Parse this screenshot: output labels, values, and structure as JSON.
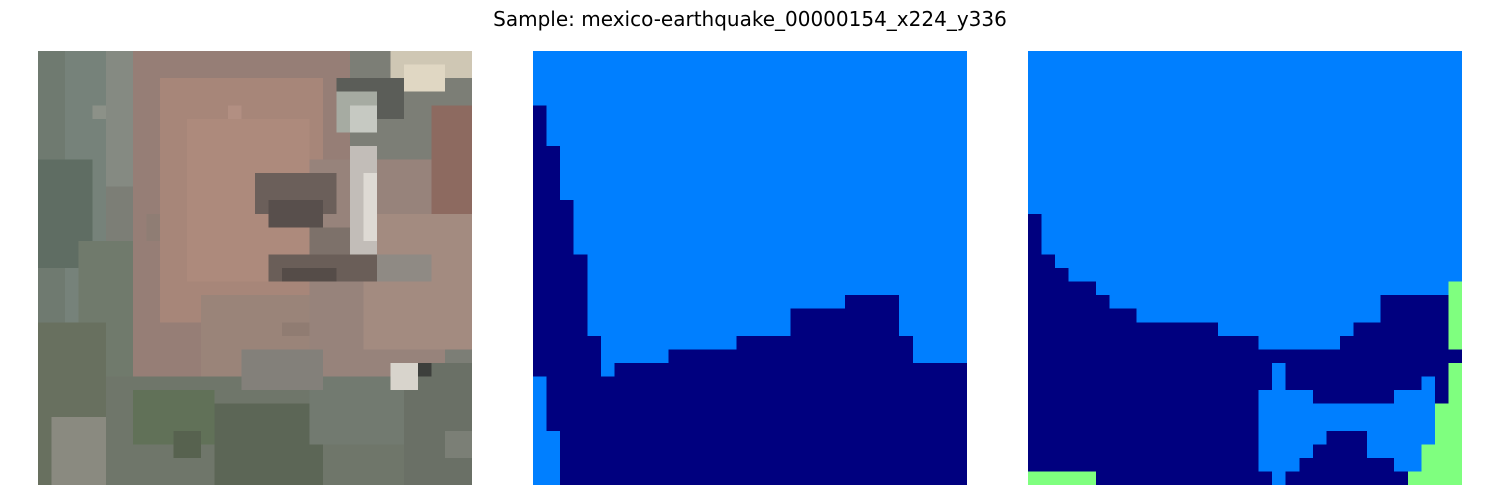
{
  "title": "Sample: mexico-earthquake_00000154_x224_y336",
  "panels": [
    {
      "kind": "satellite-image-patch"
    },
    {
      "kind": "segmentation-mask"
    },
    {
      "kind": "segmentation-mask"
    }
  ],
  "colors": {
    "background_class": "#007fff",
    "building_class": "#00007f",
    "damage_class": "#7fff7f"
  }
}
